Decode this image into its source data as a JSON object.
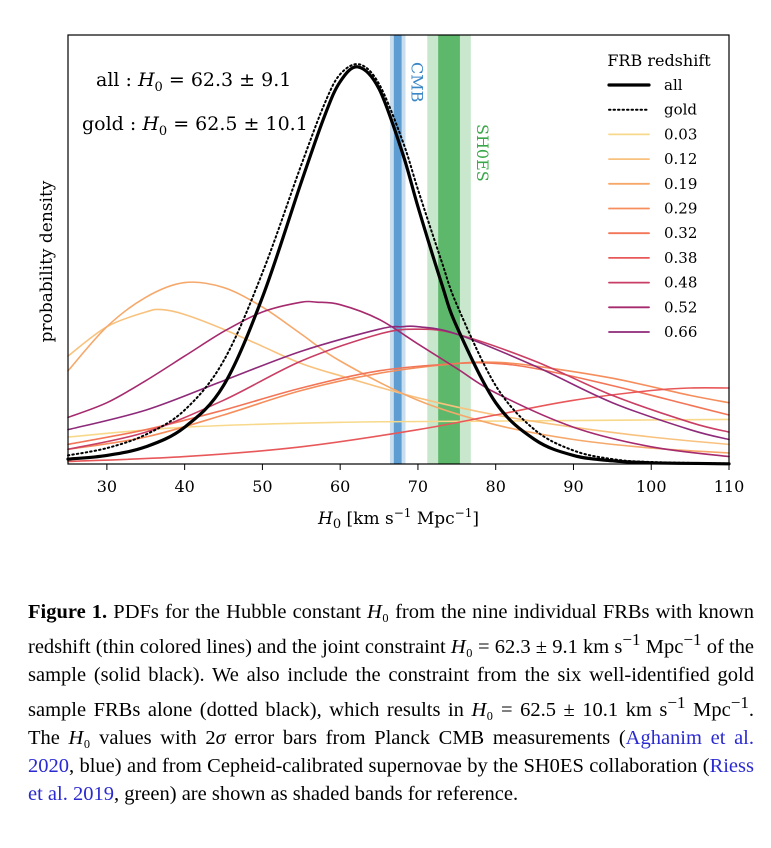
{
  "chart_data": {
    "type": "line",
    "xlabel_html": "H<tspan font-size='13' dy='4'>0</tspan><tspan dy='-4'> [km s</tspan><tspan font-size='12' dy='-7'>−1</tspan><tspan dy='7'> Mpc</tspan><tspan font-size='12' dy='-7'>−1</tspan><tspan dy='7'>]</tspan>",
    "xlabel": "H0 [km s−1 Mpc−1]",
    "ylabel": "probability density",
    "xlim": [
      25,
      110
    ],
    "xticks": [
      30,
      40,
      50,
      60,
      70,
      80,
      90,
      100,
      110
    ],
    "legend_title": "FRB redshift",
    "legend_position": "top-right",
    "bands": [
      {
        "label": "CMB",
        "center": 67.4,
        "sigma1": 0.5,
        "sigma2": 1.0,
        "color": "#3a87c7"
      },
      {
        "label": "SH0ES",
        "center": 74.0,
        "sigma1": 1.4,
        "sigma2": 2.8,
        "color": "#3aa84a"
      }
    ],
    "annotations": [
      {
        "label": "all",
        "value": "62.3 ± 9.1"
      },
      {
        "label": "gold",
        "value": "62.5 ± 10.1"
      }
    ],
    "series": [
      {
        "name": "all",
        "style": "solid",
        "color": "#000000",
        "x": [
          25,
          30,
          35,
          40,
          45,
          50,
          55,
          58,
          60,
          62.3,
          65,
          68,
          70,
          73,
          75,
          80,
          85,
          90,
          95,
          100,
          110
        ],
        "y": [
          0.002,
          0.0035,
          0.007,
          0.015,
          0.032,
          0.068,
          0.115,
          0.142,
          0.156,
          0.162,
          0.153,
          0.127,
          0.105,
          0.074,
          0.056,
          0.025,
          0.01,
          0.0035,
          0.0013,
          0.0005,
          0.0001
        ]
      },
      {
        "name": "gold",
        "style": "dotted",
        "color": "#000000",
        "x": [
          25,
          30,
          35,
          40,
          45,
          50,
          55,
          58,
          60,
          62.5,
          65,
          68,
          70,
          73,
          75,
          80,
          85,
          90,
          95,
          100,
          110
        ],
        "y": [
          0.0035,
          0.0065,
          0.012,
          0.022,
          0.042,
          0.078,
          0.122,
          0.147,
          0.159,
          0.163,
          0.155,
          0.132,
          0.112,
          0.083,
          0.065,
          0.032,
          0.014,
          0.0055,
          0.002,
          0.0008,
          0.0002
        ]
      },
      {
        "name": "0.03",
        "style": "solid",
        "color": "#f8d98c",
        "x": [
          25,
          40,
          60,
          80,
          100,
          110
        ],
        "y": [
          0.011,
          0.015,
          0.017,
          0.0175,
          0.018,
          0.0182
        ]
      },
      {
        "name": "0.12",
        "style": "solid",
        "color": "#f8c27e",
        "x": [
          25,
          30,
          35,
          37,
          40,
          45,
          50,
          55,
          60,
          70,
          80,
          90,
          100,
          110
        ],
        "y": [
          0.044,
          0.056,
          0.062,
          0.063,
          0.061,
          0.055,
          0.048,
          0.041,
          0.036,
          0.027,
          0.02,
          0.015,
          0.011,
          0.008
        ]
      },
      {
        "name": "0.19",
        "style": "solid",
        "color": "#f6a86a",
        "x": [
          25,
          30,
          35,
          40,
          45,
          50,
          55,
          60,
          70,
          80,
          90,
          100,
          110
        ],
        "y": [
          0.038,
          0.056,
          0.068,
          0.074,
          0.072,
          0.064,
          0.053,
          0.042,
          0.026,
          0.016,
          0.01,
          0.0065,
          0.0045
        ]
      },
      {
        "name": "0.29",
        "style": "solid",
        "color": "#f58d5c",
        "x": [
          25,
          35,
          45,
          55,
          65,
          75,
          80,
          85,
          95,
          105,
          110
        ],
        "y": [
          0.006,
          0.011,
          0.02,
          0.03,
          0.037,
          0.041,
          0.0415,
          0.04,
          0.035,
          0.028,
          0.025
        ]
      },
      {
        "name": "0.32",
        "style": "solid",
        "color": "#f27557",
        "x": [
          25,
          35,
          45,
          55,
          65,
          75,
          80,
          85,
          95,
          105,
          110
        ],
        "y": [
          0.008,
          0.014,
          0.022,
          0.031,
          0.038,
          0.041,
          0.041,
          0.039,
          0.032,
          0.024,
          0.02
        ]
      },
      {
        "name": "0.38",
        "style": "solid",
        "color": "#e8585a",
        "x": [
          25,
          40,
          55,
          70,
          80,
          90,
          100,
          105,
          110
        ],
        "y": [
          0.001,
          0.003,
          0.007,
          0.014,
          0.02,
          0.026,
          0.03,
          0.031,
          0.031
        ]
      },
      {
        "name": "0.48",
        "style": "solid",
        "color": "#c93e64",
        "x": [
          25,
          35,
          45,
          55,
          65,
          70,
          75,
          85,
          95,
          105,
          110
        ],
        "y": [
          0.006,
          0.013,
          0.026,
          0.042,
          0.053,
          0.055,
          0.053,
          0.042,
          0.028,
          0.017,
          0.013
        ]
      },
      {
        "name": "0.52",
        "style": "solid",
        "color": "#a52a6e",
        "x": [
          25,
          30,
          35,
          40,
          45,
          50,
          55,
          57,
          60,
          65,
          70,
          75,
          80,
          90,
          100,
          110
        ],
        "y": [
          0.019,
          0.025,
          0.034,
          0.044,
          0.054,
          0.062,
          0.066,
          0.066,
          0.065,
          0.059,
          0.049,
          0.039,
          0.029,
          0.015,
          0.007,
          0.003
        ]
      },
      {
        "name": "0.66",
        "style": "solid",
        "color": "#8e2a7a",
        "x": [
          25,
          35,
          45,
          55,
          65,
          68,
          70,
          75,
          85,
          95,
          105,
          110
        ],
        "y": [
          0.014,
          0.022,
          0.034,
          0.046,
          0.055,
          0.056,
          0.056,
          0.053,
          0.04,
          0.025,
          0.014,
          0.01
        ]
      }
    ]
  },
  "caption": {
    "label": "Figure 1.",
    "text_html": " PDFs for the Hubble constant <i>H</i>₀ from the nine individual FRBs with known redshift (thin colored lines) and the joint constraint <i>H</i>₀ = 62.3 ± 9.1 km s<sup>−1</sup> Mpc<sup>−1</sup> of the sample (solid black). We also include the constraint from the six well-identified gold sample FRBs alone (dotted black), which results in <i>H</i>₀ = 62.5 ± 10.1 km s<sup>−1</sup> Mpc<sup>−1</sup>. The <i>H</i>₀ values with 2<i>σ</i> error bars from Planck CMB measurements (<span class='cite'>Aghanim et al. 2020</span>, blue) and from Cepheid-calibrated supernovae by the SH0ES collaboration (<span class='cite'>Riess et al. 2019</span>, green) are shown as shaded bands for reference."
  }
}
